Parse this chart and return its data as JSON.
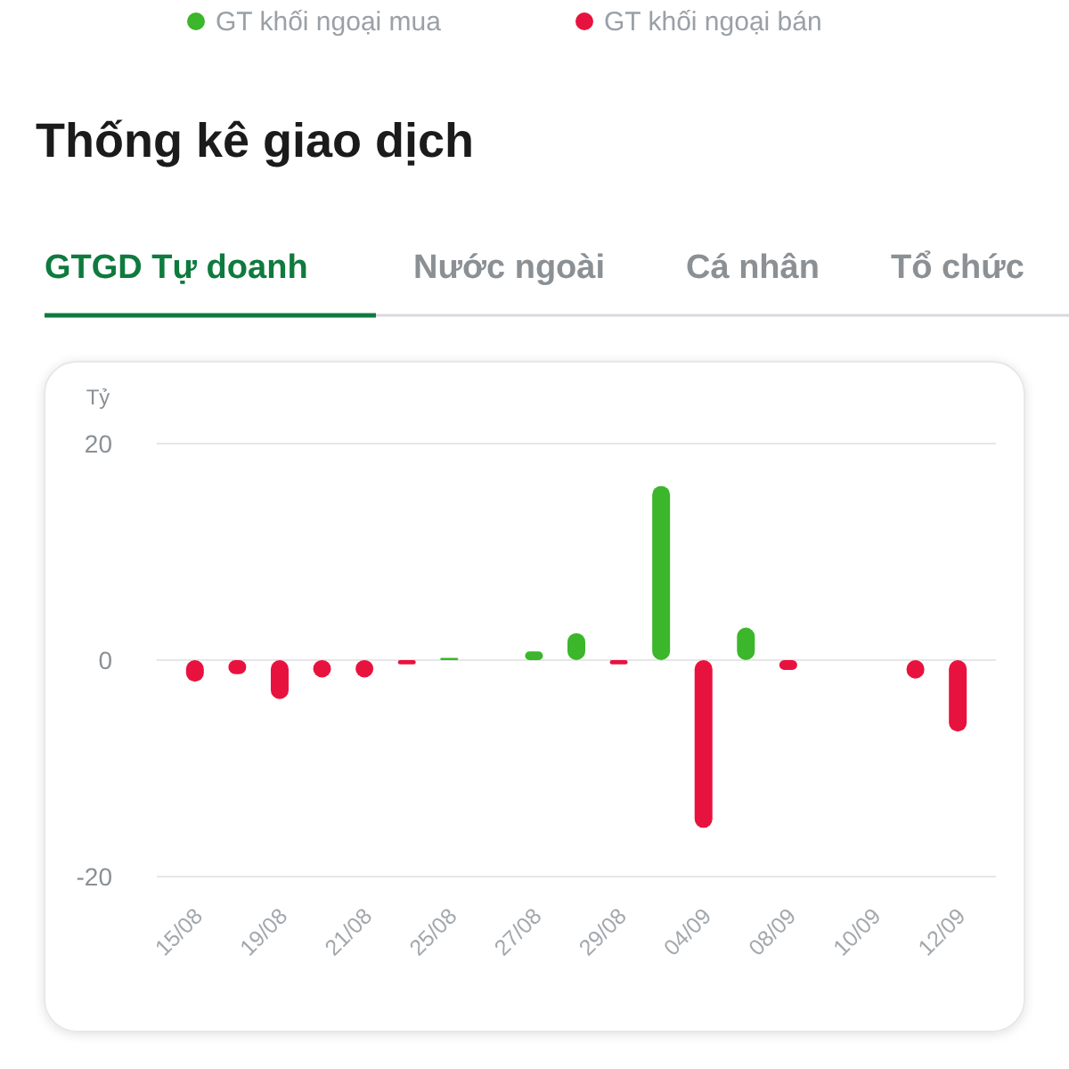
{
  "chart_data": {
    "type": "bar",
    "title": "Thống kê giao dịch",
    "ylabel": "Tỷ",
    "annotations": [
      "GT khối ngoại mua",
      "GT khối ngoại bán",
      "GTGD Tự doanh",
      "Nước ngoài",
      "Cá nhân",
      "Tổ chức"
    ],
    "categories": [
      "15/08",
      null,
      "19/08",
      null,
      "21/08",
      null,
      "25/08",
      null,
      "27/08",
      null,
      "29/08",
      null,
      "04/09",
      null,
      "08/09",
      null,
      "10/09",
      null,
      "12/09"
    ],
    "values": [
      -2,
      -1.3,
      -3.6,
      -1.6,
      -1.6,
      -0.4,
      0.2,
      0,
      0.8,
      2.5,
      -0.4,
      16.1,
      -15.5,
      3,
      -0.9,
      0,
      0,
      -1.7,
      -6.6
    ],
    "colors": [
      "#e8123f",
      "#e8123f",
      "#e8123f",
      "#e8123f",
      "#e8123f",
      "#e8123f",
      "#3cb62a",
      "#3cb62a",
      "#3cb62a",
      "#3cb62a",
      "#e8123f",
      "#3cb62a",
      "#e8123f",
      "#3cb62a",
      "#e8123f",
      "#e8123f",
      "#e8123f",
      "#e8123f",
      "#e8123f"
    ],
    "ylim": [
      -20,
      20
    ],
    "yticks": [
      -20,
      0,
      20
    ],
    "grid": "y"
  }
}
